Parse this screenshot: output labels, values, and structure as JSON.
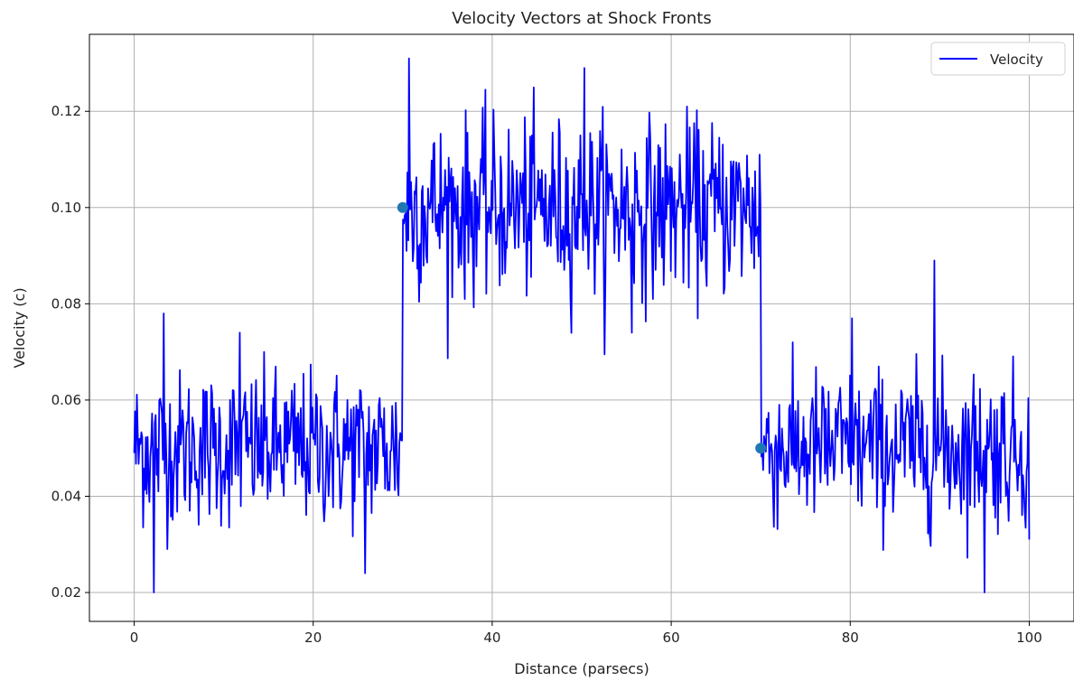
{
  "chart_data": {
    "type": "line",
    "title": "Velocity Vectors at Shock Fronts",
    "xlabel": "Distance (parsecs)",
    "ylabel": "Velocity (c)",
    "xlim": [
      -5,
      105
    ],
    "ylim": [
      0.014,
      0.136
    ],
    "x_ticks": [
      0,
      20,
      40,
      60,
      80,
      100
    ],
    "y_ticks": [
      0.02,
      0.04,
      0.06,
      0.08,
      0.1,
      0.12
    ],
    "y_tick_labels": [
      "0.02",
      "0.04",
      "0.06",
      "0.08",
      "0.10",
      "0.12"
    ],
    "grid": true,
    "legend_position": "top-right",
    "series": [
      {
        "name": "Velocity",
        "color": "#0000ff",
        "segments": [
          {
            "x_start": 0,
            "x_end": 30,
            "baseline": 0.05,
            "noise": 0.008
          },
          {
            "x_start": 30,
            "x_end": 70,
            "baseline": 0.1,
            "noise": 0.009
          },
          {
            "x_start": 70,
            "x_end": 100,
            "baseline": 0.05,
            "noise": 0.008
          }
        ],
        "notable_points": [
          {
            "x": 0.0,
            "y": 0.049
          },
          {
            "x": 2.2,
            "y": 0.02
          },
          {
            "x": 3.3,
            "y": 0.078
          },
          {
            "x": 11.8,
            "y": 0.074
          },
          {
            "x": 25.8,
            "y": 0.024
          },
          {
            "x": 30.7,
            "y": 0.131
          },
          {
            "x": 50.3,
            "y": 0.129
          },
          {
            "x": 55.6,
            "y": 0.074
          },
          {
            "x": 80.2,
            "y": 0.077
          },
          {
            "x": 89.4,
            "y": 0.089
          },
          {
            "x": 95.0,
            "y": 0.02
          },
          {
            "x": 100.0,
            "y": 0.031
          }
        ]
      }
    ],
    "markers": {
      "color": "#1f77b4",
      "points": [
        {
          "x": 30,
          "y": 0.1
        },
        {
          "x": 70,
          "y": 0.05
        }
      ]
    }
  }
}
